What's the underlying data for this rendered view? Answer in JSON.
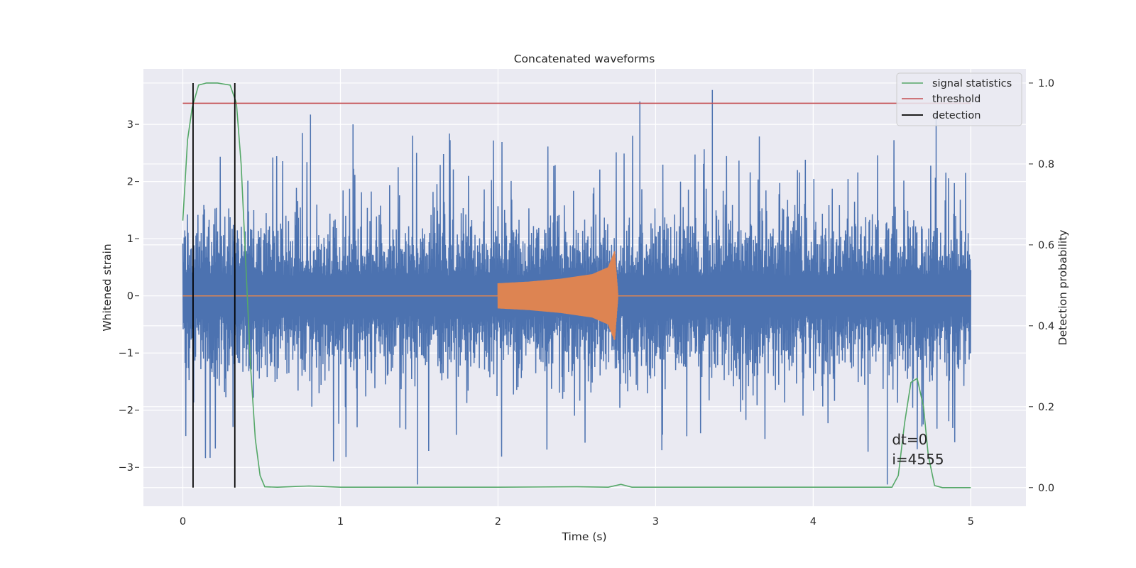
{
  "chart_data": {
    "type": "line",
    "title": "Concatenated waveforms",
    "xlabel": "Time (s)",
    "ylabel": "Whitened strain",
    "y2label": "Detection probability",
    "xlim": [
      -0.25,
      5.35
    ],
    "ylim": [
      -3.68,
      3.97
    ],
    "y2lim": [
      -0.046,
      1.035
    ],
    "xticks": [
      "0",
      "1",
      "2",
      "3",
      "4",
      "5"
    ],
    "xtick_values": [
      0,
      1,
      2,
      3,
      4,
      5
    ],
    "yticks": [
      "−3",
      "−2",
      "−1",
      "0",
      "1",
      "2",
      "3"
    ],
    "ytick_values": [
      -3,
      -2,
      -1,
      0,
      1,
      2,
      3
    ],
    "y2ticks": [
      "0.0",
      "0.2",
      "0.4",
      "0.6",
      "0.8",
      "1.0"
    ],
    "y2tick_values": [
      0.0,
      0.2,
      0.4,
      0.6,
      0.8,
      1.0
    ],
    "grid": true,
    "legend_position": "top-right",
    "colors": {
      "background": "#eaeaf2",
      "grid": "#ffffff",
      "strain": "#4c72b0",
      "template": "#dd8452",
      "statistics": "#55a868",
      "threshold": "#c44e52",
      "detection": "#000000",
      "text": "#262626"
    },
    "series": [
      {
        "name": "",
        "role": "noisy strain",
        "axis": "left",
        "description": "dense noisy strain trace spanning 0 to 5 s with peaks up to about 3.6 and troughs near -3.3",
        "x_range": [
          0,
          5
        ],
        "approx_envelope": [
          -3.3,
          3.6
        ],
        "peaks": [
          [
            0.81,
            3.17
          ],
          [
            1.08,
            3.0
          ],
          [
            2.9,
            3.4
          ],
          [
            3.36,
            3.6
          ],
          [
            4.78,
            3.2
          ],
          [
            1.49,
            -3.3
          ],
          [
            4.47,
            -3.3
          ]
        ]
      },
      {
        "name": "",
        "role": "injected chirp",
        "axis": "left",
        "description": "zero outside 2.0 to 2.76 s; chirp amplitude growing to about 0.8 near merger at 2.74 s",
        "x": [
          2.0,
          2.2,
          2.4,
          2.6,
          2.7,
          2.74,
          2.76
        ],
        "amplitude": [
          0.22,
          0.25,
          0.3,
          0.38,
          0.5,
          0.78,
          0.05
        ]
      },
      {
        "name": "signal statistics",
        "axis": "right",
        "x": [
          0.0,
          0.03,
          0.06,
          0.1,
          0.15,
          0.22,
          0.3,
          0.34,
          0.37,
          0.4,
          0.43,
          0.46,
          0.49,
          0.52,
          0.6,
          0.8,
          1.0,
          1.5,
          2.0,
          2.5,
          2.7,
          2.78,
          2.85,
          3.0,
          4.0,
          4.5,
          4.54,
          4.58,
          4.62,
          4.66,
          4.7,
          4.73,
          4.77,
          4.82,
          5.0
        ],
        "y": [
          0.66,
          0.86,
          0.94,
          0.995,
          1.0,
          1.0,
          0.995,
          0.95,
          0.8,
          0.55,
          0.3,
          0.12,
          0.03,
          0.002,
          0.001,
          0.004,
          0.001,
          0.001,
          0.001,
          0.002,
          0.001,
          0.008,
          0.001,
          0.001,
          0.001,
          0.001,
          0.03,
          0.16,
          0.26,
          0.27,
          0.2,
          0.08,
          0.005,
          0.0,
          0.0
        ]
      },
      {
        "name": "threshold",
        "axis": "right",
        "x": [
          0,
          5
        ],
        "y": [
          0.95,
          0.95
        ]
      },
      {
        "name": "detection",
        "axis": "right",
        "x_values": [
          0.065,
          0.33
        ],
        "y_span": [
          0.0,
          1.0
        ]
      }
    ],
    "annotations": [
      {
        "text": "dt=0",
        "x": 4.5,
        "y": -2.6
      },
      {
        "text": "i=4555",
        "x": 4.5,
        "y": -2.95
      }
    ]
  }
}
